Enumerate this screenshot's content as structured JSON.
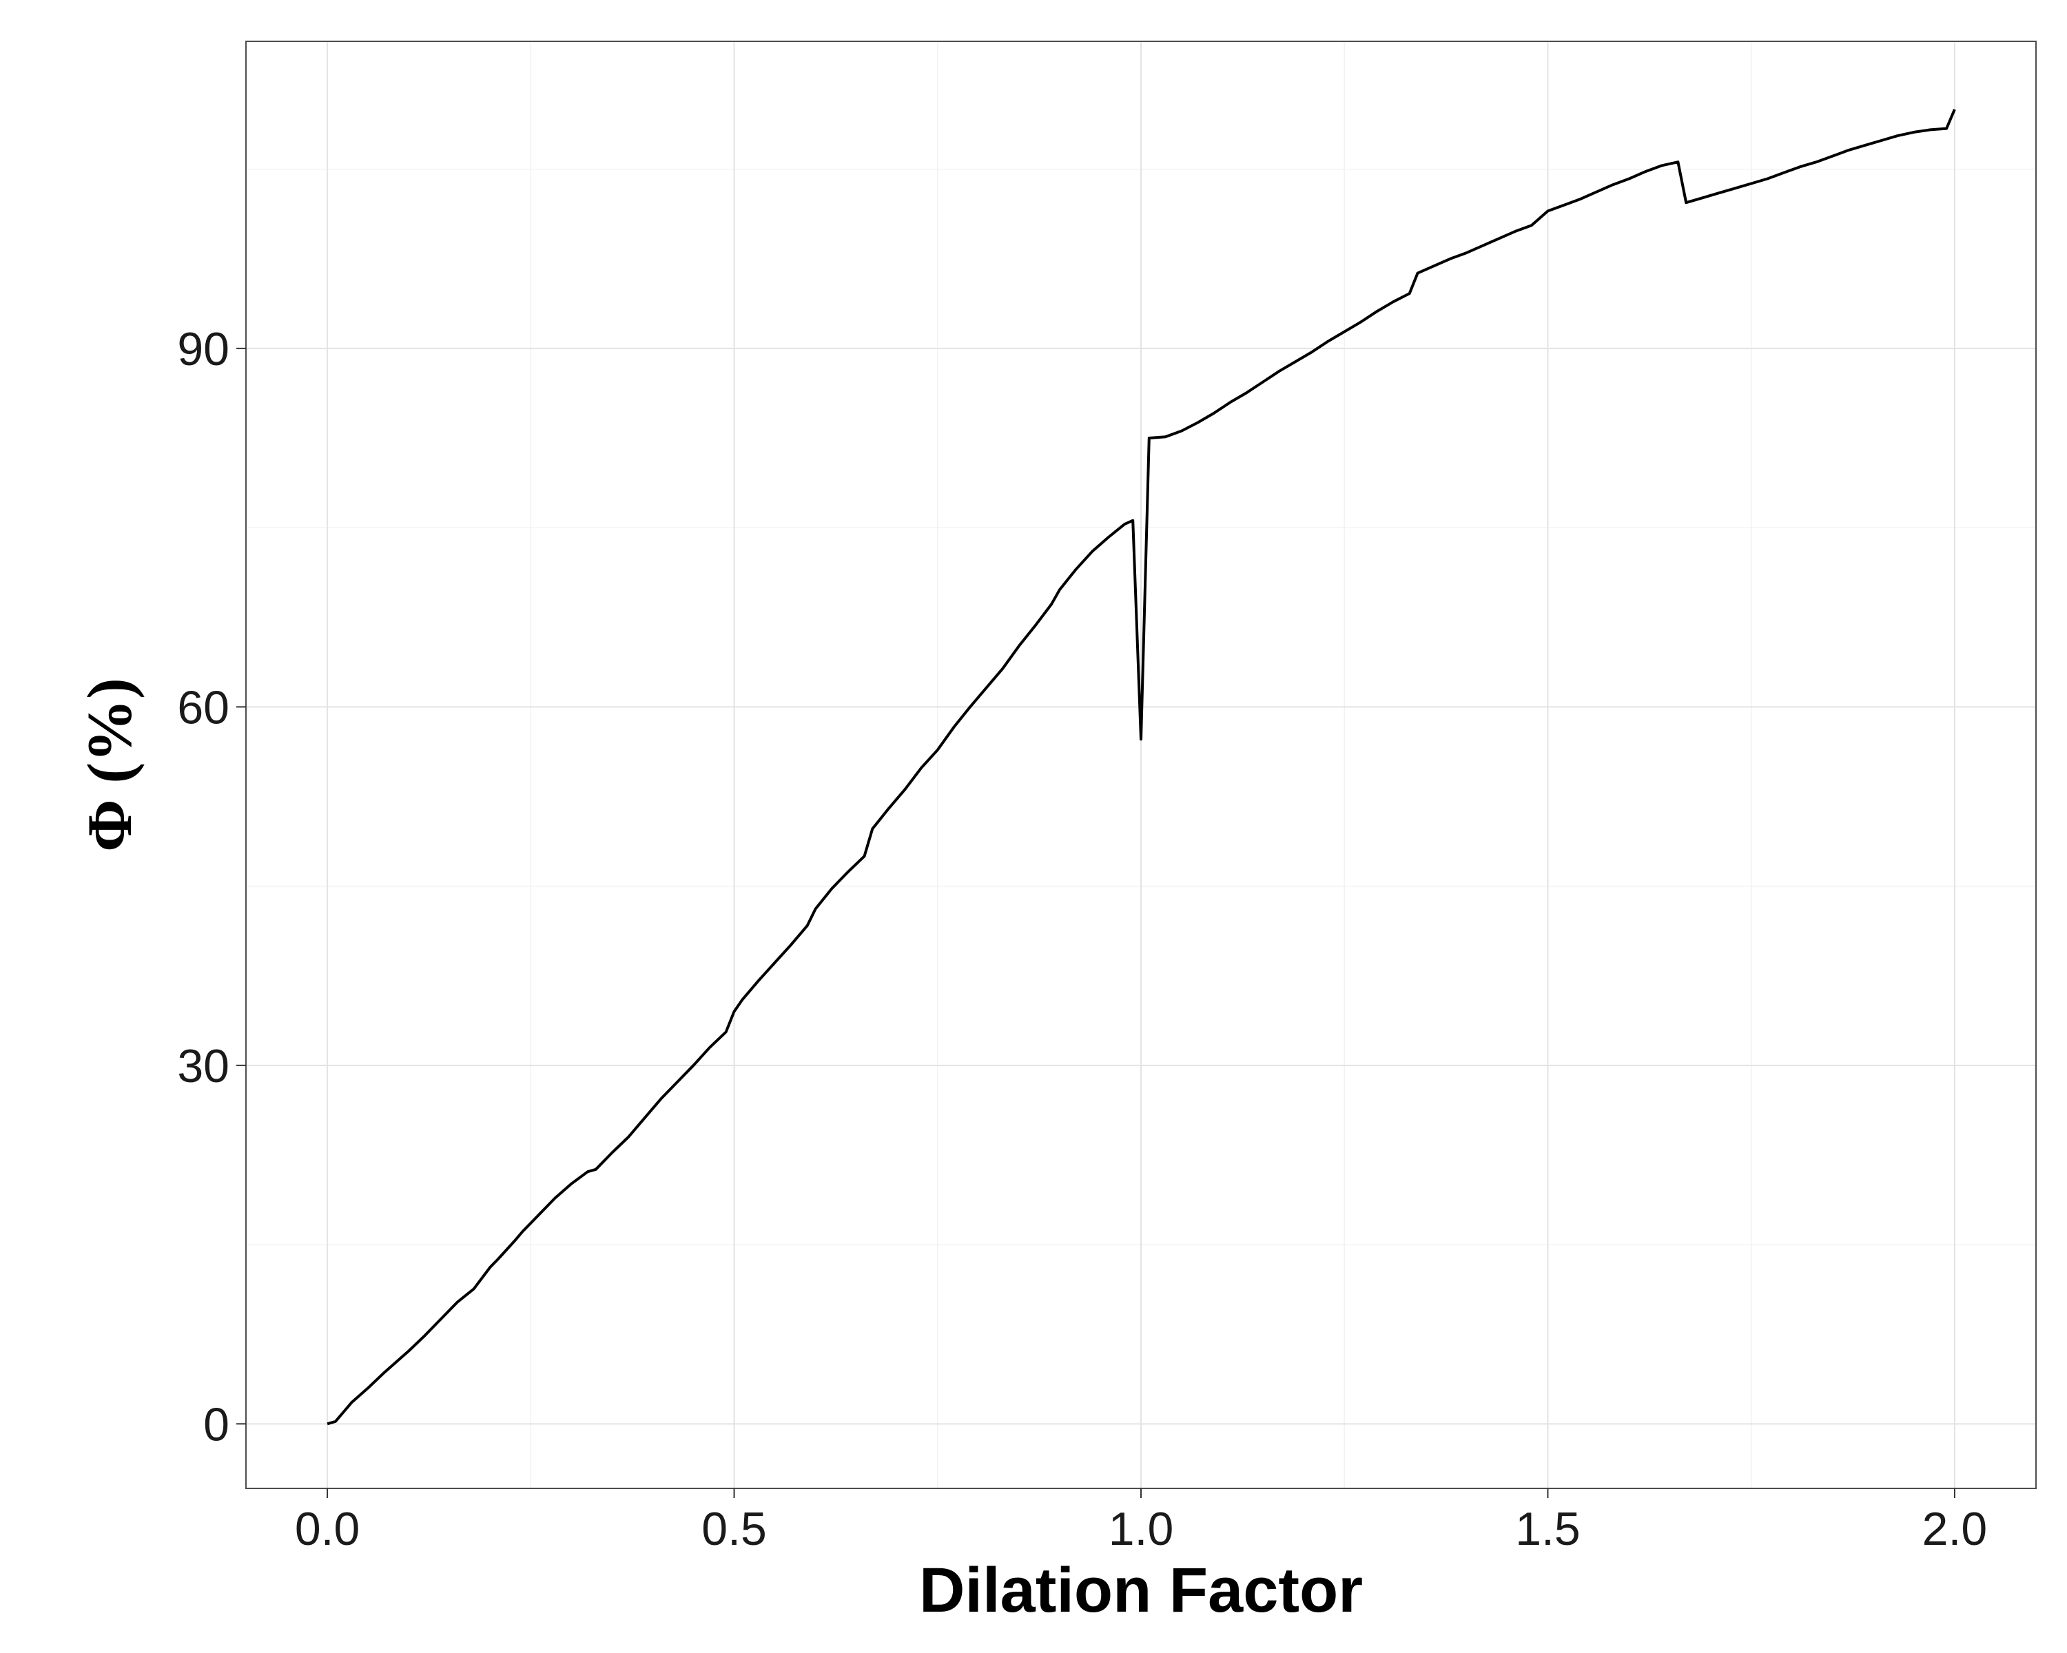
{
  "chart_data": {
    "type": "line",
    "title": "",
    "xlabel": "Dilation Factor",
    "ylabel": "Φ (%)",
    "xlim": [
      -0.1,
      2.1
    ],
    "ylim": [
      -5.4,
      115.7
    ],
    "x_ticks": [
      0.0,
      0.5,
      1.0,
      1.5,
      2.0
    ],
    "x_tick_labels": [
      "0.0",
      "0.5",
      "1.0",
      "1.5",
      "2.0"
    ],
    "y_ticks": [
      0,
      30,
      60,
      90
    ],
    "y_tick_labels": [
      "0",
      "30",
      "60",
      "90"
    ],
    "grid": true,
    "legend": "none",
    "line_color": "#000000",
    "series": [
      {
        "x": [
          0.0,
          0.01,
          0.02,
          0.03,
          0.05,
          0.07,
          0.09,
          0.1,
          0.12,
          0.14,
          0.16,
          0.18,
          0.2,
          0.21,
          0.23,
          0.24,
          0.26,
          0.28,
          0.3,
          0.32,
          0.33,
          0.35,
          0.37,
          0.39,
          0.41,
          0.43,
          0.45,
          0.47,
          0.49,
          0.5,
          0.51,
          0.53,
          0.55,
          0.57,
          0.59,
          0.6,
          0.62,
          0.64,
          0.66,
          0.67,
          0.69,
          0.71,
          0.73,
          0.75,
          0.77,
          0.79,
          0.81,
          0.83,
          0.85,
          0.87,
          0.89,
          0.9,
          0.92,
          0.94,
          0.96,
          0.98,
          0.99,
          1.0,
          1.01,
          1.03,
          1.05,
          1.07,
          1.09,
          1.11,
          1.13,
          1.15,
          1.17,
          1.19,
          1.21,
          1.23,
          1.25,
          1.27,
          1.29,
          1.31,
          1.33,
          1.34,
          1.36,
          1.38,
          1.4,
          1.42,
          1.44,
          1.46,
          1.48,
          1.5,
          1.52,
          1.54,
          1.56,
          1.58,
          1.6,
          1.62,
          1.64,
          1.66,
          1.67,
          1.69,
          1.71,
          1.73,
          1.75,
          1.77,
          1.79,
          1.81,
          1.83,
          1.85,
          1.87,
          1.89,
          1.91,
          1.93,
          1.95,
          1.97,
          1.99,
          2.0
        ],
        "y": [
          0.0,
          0.2,
          1.0,
          1.8,
          3.0,
          4.3,
          5.5,
          6.1,
          7.4,
          8.8,
          10.2,
          11.3,
          13.1,
          13.8,
          15.3,
          16.1,
          17.5,
          18.9,
          20.1,
          21.1,
          21.3,
          22.7,
          24.0,
          25.6,
          27.2,
          28.6,
          30.0,
          31.5,
          32.8,
          34.5,
          35.5,
          37.1,
          38.6,
          40.1,
          41.7,
          43.1,
          44.8,
          46.2,
          47.5,
          49.8,
          51.5,
          53.1,
          54.9,
          56.4,
          58.3,
          60.0,
          61.6,
          63.2,
          65.1,
          66.8,
          68.6,
          69.8,
          71.5,
          73.0,
          74.2,
          75.3,
          75.6,
          57.3,
          82.5,
          82.6,
          83.1,
          83.8,
          84.6,
          85.5,
          86.3,
          87.2,
          88.1,
          88.9,
          89.7,
          90.6,
          91.4,
          92.2,
          93.1,
          93.9,
          94.6,
          96.3,
          96.9,
          97.5,
          98.0,
          98.6,
          99.2,
          99.8,
          100.3,
          101.5,
          102.0,
          102.5,
          103.1,
          103.7,
          104.2,
          104.8,
          105.3,
          105.6,
          102.2,
          102.6,
          103.0,
          103.4,
          103.8,
          104.2,
          104.7,
          105.2,
          105.6,
          106.1,
          106.6,
          107.0,
          107.4,
          107.8,
          108.1,
          108.3,
          108.4,
          110.0
        ]
      }
    ]
  }
}
